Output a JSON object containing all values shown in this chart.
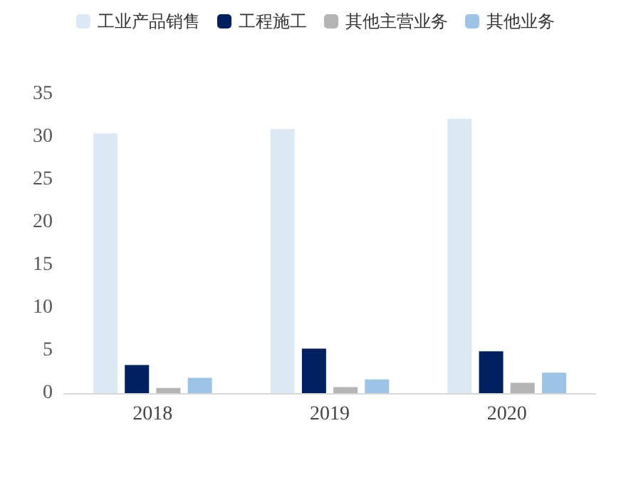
{
  "chart_data": {
    "type": "bar",
    "categories": [
      "2018",
      "2019",
      "2020"
    ],
    "series": [
      {
        "name": "工业产品销售",
        "color": "#dde8f5",
        "values": [
          30.4,
          30.9,
          32.1
        ]
      },
      {
        "name": "工程施工",
        "color": "#002060",
        "values": [
          3.3,
          5.2,
          4.9
        ]
      },
      {
        "name": "其他主营业务",
        "color": "#b4b4b4",
        "values": [
          0.6,
          0.7,
          1.2
        ]
      },
      {
        "name": "其他业务",
        "color": "#9dc3e6",
        "values": [
          1.8,
          1.6,
          2.4
        ]
      }
    ],
    "ylim": [
      0,
      35
    ],
    "yticks": [
      0,
      5,
      10,
      15,
      20,
      25,
      30,
      35
    ],
    "grid": false,
    "legend": "top"
  }
}
